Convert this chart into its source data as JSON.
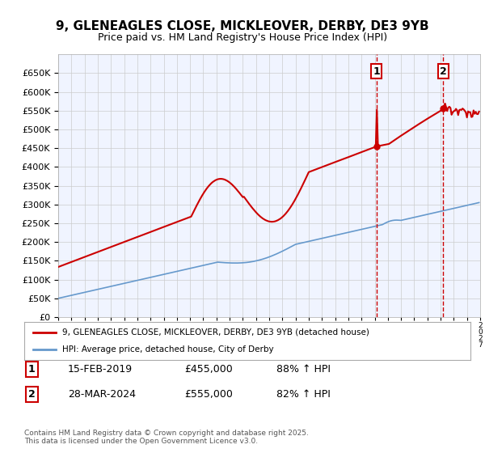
{
  "title": "9, GLENEAGLES CLOSE, MICKLEOVER, DERBY, DE3 9YB",
  "subtitle": "Price paid vs. HM Land Registry's House Price Index (HPI)",
  "legend_line1": "9, GLENEAGLES CLOSE, MICKLEOVER, DERBY, DE3 9YB (detached house)",
  "legend_line2": "HPI: Average price, detached house, City of Derby",
  "transaction1_label": "1",
  "transaction1_date": "15-FEB-2019",
  "transaction1_price": "£455,000",
  "transaction1_hpi": "88% ↑ HPI",
  "transaction2_label": "2",
  "transaction2_date": "28-MAR-2024",
  "transaction2_price": "£555,000",
  "transaction2_hpi": "82% ↑ HPI",
  "footer": "Contains HM Land Registry data © Crown copyright and database right 2025.\nThis data is licensed under the Open Government Licence v3.0.",
  "red_color": "#cc0000",
  "blue_color": "#6699cc",
  "dashed_red": "#cc0000",
  "background_chart": "#f0f4ff",
  "grid_color": "#cccccc",
  "ylim": [
    0,
    700000
  ],
  "yticks": [
    0,
    50000,
    100000,
    150000,
    200000,
    250000,
    300000,
    350000,
    400000,
    450000,
    500000,
    550000,
    600000,
    650000
  ],
  "xstart_year": 1995,
  "xend_year": 2027
}
